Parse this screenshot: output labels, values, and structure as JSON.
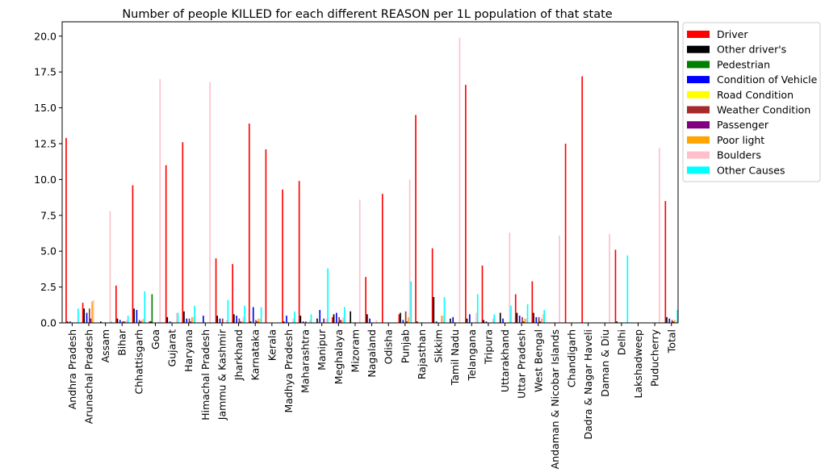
{
  "chart_data": {
    "type": "bar",
    "title": "Number of people KILLED for each different REASON per 1L population of that state",
    "xlabel": "",
    "ylabel": "",
    "ylim": [
      0,
      21
    ],
    "yticks": [
      "0.0",
      "2.5",
      "5.0",
      "7.5",
      "10.0",
      "12.5",
      "15.0",
      "17.5",
      "20.0"
    ],
    "legend_position": "outside-top-right",
    "categories": [
      "Andhra Pradesh",
      "Arunachal Pradesh",
      "Assam",
      "Bihar",
      "Chhattisgarh",
      "Goa",
      "Gujarat",
      "Haryana",
      "Himachal Pradesh",
      "Jammu & Kashmir",
      "Jharkhand",
      "Karnataka",
      "Kerala",
      "Madhya Pradesh",
      "Maharashtra",
      "Manipur",
      "Meghalaya",
      "Mizoram",
      "Nagaland",
      "Odisha",
      "Punjab",
      "Rajasthan",
      "Sikkim",
      "Tamil Nadu",
      "Telangana",
      "Tripura",
      "Uttarakhand",
      "Uttar Pradesh",
      "West Bengal",
      "Andaman & Nicobar Islands",
      "Chandigarh",
      "Dadra & Nagar Haveli",
      "Daman & Diu",
      "Delhi",
      "Lakshadweep",
      "Puducherry",
      "Total"
    ],
    "series": [
      {
        "name": "Driver",
        "color": "#ff0000",
        "values": [
          12.9,
          1.4,
          0.0,
          2.6,
          9.6,
          0.1,
          11.0,
          12.6,
          0.0,
          4.5,
          4.1,
          13.9,
          12.1,
          9.3,
          9.9,
          0.0,
          0.4,
          0.0,
          3.2,
          9.0,
          0.6,
          14.5,
          5.2,
          0.0,
          16.6,
          4.0,
          0.0,
          2.0,
          2.9,
          0.0,
          12.5,
          17.2,
          0.0,
          5.1,
          0.0,
          0.0,
          8.5
        ]
      },
      {
        "name": "Other driver's",
        "color": "#000000",
        "values": [
          0.1,
          1.0,
          0.1,
          0.3,
          1.0,
          0.1,
          0.4,
          0.8,
          0.0,
          0.5,
          0.6,
          0.1,
          0.0,
          0.1,
          0.5,
          0.3,
          0.6,
          0.8,
          0.6,
          0.0,
          0.7,
          0.1,
          1.8,
          0.3,
          0.3,
          0.2,
          0.7,
          0.7,
          0.7,
          0.0,
          0.0,
          0.0,
          0.0,
          0.1,
          0.0,
          0.0,
          0.4
        ]
      },
      {
        "name": "Pedestrian",
        "color": "#008000",
        "values": [
          0.0,
          0.0,
          0.0,
          0.0,
          0.0,
          2.0,
          0.0,
          0.0,
          0.0,
          0.0,
          0.0,
          0.0,
          0.0,
          0.0,
          0.0,
          0.0,
          0.0,
          0.0,
          0.0,
          0.0,
          0.0,
          0.0,
          0.0,
          0.0,
          0.0,
          0.0,
          0.0,
          0.0,
          0.0,
          0.0,
          0.0,
          0.0,
          0.0,
          0.0,
          0.0,
          0.0,
          0.0
        ]
      },
      {
        "name": "Condition of Vehicle",
        "color": "#0000ff",
        "values": [
          0.1,
          0.7,
          0.0,
          0.2,
          0.9,
          0.0,
          0.1,
          0.3,
          0.5,
          0.3,
          0.5,
          1.1,
          0.0,
          0.5,
          0.1,
          0.9,
          0.7,
          0.0,
          0.3,
          0.0,
          0.2,
          0.0,
          0.1,
          0.4,
          0.6,
          0.1,
          0.3,
          0.5,
          0.4,
          0.0,
          0.0,
          0.0,
          0.0,
          0.0,
          0.0,
          0.0,
          0.3
        ]
      },
      {
        "name": "Road Condition",
        "color": "#ffff00",
        "values": [
          0.0,
          0.0,
          0.0,
          0.0,
          0.0,
          0.0,
          0.0,
          0.0,
          0.0,
          0.0,
          0.0,
          0.0,
          0.0,
          0.0,
          0.0,
          0.0,
          0.0,
          0.0,
          0.0,
          0.0,
          0.0,
          0.0,
          0.0,
          0.0,
          0.0,
          0.0,
          0.0,
          0.0,
          0.0,
          0.0,
          0.0,
          0.0,
          0.0,
          0.0,
          0.0,
          0.0,
          0.0
        ]
      },
      {
        "name": "Weather Condition",
        "color": "#a52a2a",
        "values": [
          0.0,
          1.0,
          0.0,
          0.1,
          0.2,
          0.0,
          0.0,
          0.3,
          0.0,
          0.3,
          0.3,
          0.2,
          0.0,
          0.0,
          0.1,
          0.0,
          0.4,
          0.0,
          0.0,
          0.0,
          0.8,
          0.0,
          0.0,
          0.0,
          0.0,
          0.0,
          0.0,
          0.4,
          0.4,
          0.0,
          0.0,
          0.0,
          0.0,
          0.0,
          0.0,
          0.0,
          0.2
        ]
      },
      {
        "name": "Passenger",
        "color": "#800080",
        "values": [
          0.0,
          0.3,
          0.0,
          0.1,
          0.1,
          0.0,
          0.0,
          0.1,
          0.0,
          0.0,
          0.1,
          0.1,
          0.0,
          0.0,
          0.0,
          0.3,
          0.2,
          0.0,
          0.0,
          0.0,
          0.1,
          0.0,
          0.0,
          0.0,
          0.0,
          0.0,
          0.0,
          0.1,
          0.1,
          0.0,
          0.0,
          0.0,
          0.0,
          0.0,
          0.0,
          0.0,
          0.1
        ]
      },
      {
        "name": "Poor light",
        "color": "#ffa500",
        "values": [
          0.0,
          1.5,
          0.0,
          0.1,
          0.2,
          0.0,
          0.0,
          0.4,
          0.0,
          0.0,
          0.1,
          0.3,
          0.0,
          0.0,
          0.0,
          0.0,
          0.2,
          0.0,
          0.0,
          0.0,
          0.4,
          0.0,
          0.5,
          0.0,
          0.0,
          0.0,
          0.0,
          0.3,
          0.3,
          0.0,
          0.0,
          0.0,
          0.0,
          0.0,
          0.0,
          0.0,
          0.2
        ]
      },
      {
        "name": "Boulders",
        "color": "#ffc0cb",
        "values": [
          0.0,
          1.6,
          7.8,
          0.2,
          0.3,
          17.0,
          0.7,
          0.4,
          16.8,
          0.2,
          0.4,
          0.3,
          0.0,
          0.3,
          0.2,
          0.3,
          0.4,
          8.6,
          0.2,
          0.0,
          10.0,
          0.0,
          0.5,
          19.9,
          0.7,
          0.3,
          6.3,
          0.3,
          0.6,
          6.1,
          0.0,
          0.0,
          6.2,
          0.0,
          0.0,
          12.2,
          0.1
        ]
      },
      {
        "name": "Other Causes",
        "color": "#00ffff",
        "values": [
          1.0,
          0.0,
          0.1,
          0.5,
          2.2,
          0.0,
          0.7,
          1.2,
          0.0,
          1.6,
          1.2,
          1.1,
          0.0,
          0.8,
          0.6,
          3.8,
          1.1,
          0.0,
          0.0,
          0.0,
          2.9,
          0.0,
          1.8,
          0.0,
          2.0,
          0.6,
          1.2,
          1.3,
          0.9,
          0.0,
          0.0,
          0.0,
          0.0,
          4.7,
          0.0,
          0.0,
          0.9
        ]
      }
    ]
  }
}
